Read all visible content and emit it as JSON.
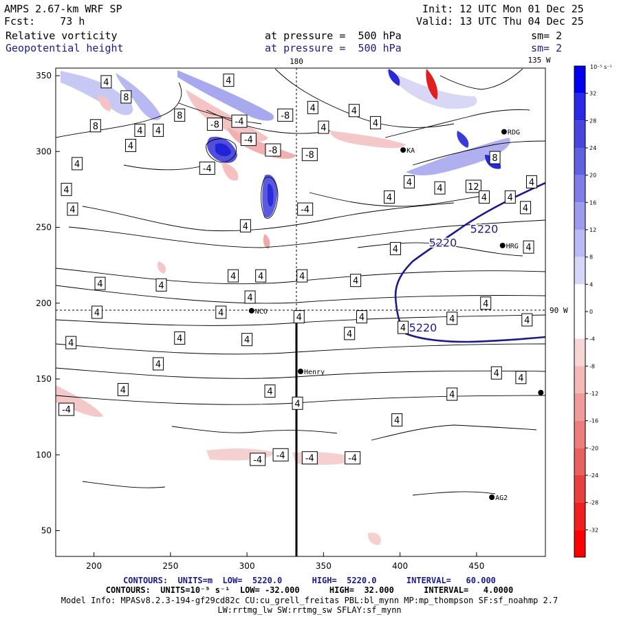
{
  "header": {
    "model": "AMPS 2.67-km WRF SP",
    "fcst": "Fcst:    73 h",
    "init": "Init: 12 UTC Mon 01 Dec 25",
    "valid": "Valid: 13 UTC Thu 04 Dec 25",
    "field1_name": "Relative vorticity",
    "field1_level": "at pressure =  500 hPa",
    "field1_sm": "sm= 2",
    "field2_name": "Geopotential height",
    "field2_level": "at pressure =  500 hPa",
    "field2_sm": "sm= 2"
  },
  "map": {
    "x_ticks": [
      "200",
      "250",
      "300",
      "350",
      "400",
      "450"
    ],
    "y_ticks": [
      "350",
      "300",
      "250",
      "200",
      "150",
      "100",
      "50"
    ],
    "x_range": [
      175,
      495
    ],
    "y_range": [
      33,
      355
    ],
    "meridian_180": "180",
    "meridian_135w": "135 W",
    "meridian_90w": "90 W",
    "stations": [
      {
        "name": "RDG",
        "x": 468,
        "y": 313
      },
      {
        "name": "KA",
        "x": 402,
        "y": 301
      },
      {
        "name": "HRG",
        "x": 467,
        "y": 238
      },
      {
        "name": "NCO",
        "x": 303,
        "y": 195
      },
      {
        "name": "Henry",
        "x": 335,
        "y": 155
      },
      {
        "name": "AG2",
        "x": 460,
        "y": 72
      },
      {
        "name": "",
        "x": 492,
        "y": 141
      }
    ],
    "height_labels": [
      {
        "text": "5220",
        "x": 455,
        "y": 249
      },
      {
        "text": "5220",
        "x": 428,
        "y": 240
      },
      {
        "text": "5220",
        "x": 415,
        "y": 184
      }
    ],
    "vort_labels": [
      {
        "t": "4",
        "x": 208,
        "y": 346
      },
      {
        "t": "8",
        "x": 221,
        "y": 336
      },
      {
        "t": "4",
        "x": 288,
        "y": 347
      },
      {
        "t": "8",
        "x": 256,
        "y": 324
      },
      {
        "t": "8",
        "x": 201,
        "y": 317
      },
      {
        "t": "4",
        "x": 230,
        "y": 314
      },
      {
        "t": "4",
        "x": 242,
        "y": 314
      },
      {
        "t": "-8",
        "x": 279,
        "y": 318
      },
      {
        "t": "-4",
        "x": 295,
        "y": 320
      },
      {
        "t": "-8",
        "x": 325,
        "y": 324
      },
      {
        "t": "4",
        "x": 343,
        "y": 329
      },
      {
        "t": "4",
        "x": 370,
        "y": 327
      },
      {
        "t": "4",
        "x": 350,
        "y": 316
      },
      {
        "t": "4",
        "x": 384,
        "y": 319
      },
      {
        "t": "-4",
        "x": 301,
        "y": 308
      },
      {
        "t": "4",
        "x": 224,
        "y": 304
      },
      {
        "t": "-8",
        "x": 317,
        "y": 301
      },
      {
        "t": "-8",
        "x": 341,
        "y": 298
      },
      {
        "t": "4",
        "x": 189,
        "y": 292
      },
      {
        "t": "-4",
        "x": 274,
        "y": 289
      },
      {
        "t": "4",
        "x": 182,
        "y": 275
      },
      {
        "t": "12",
        "x": 448,
        "y": 277
      },
      {
        "t": "8",
        "x": 462,
        "y": 296
      },
      {
        "t": "4",
        "x": 426,
        "y": 276
      },
      {
        "t": "4",
        "x": 472,
        "y": 270
      },
      {
        "t": "4",
        "x": 393,
        "y": 270
      },
      {
        "t": "4",
        "x": 455,
        "y": 270
      },
      {
        "t": "4",
        "x": 482,
        "y": 263
      },
      {
        "t": "4",
        "x": 486,
        "y": 280
      },
      {
        "t": "4",
        "x": 406,
        "y": 280
      },
      {
        "t": "4",
        "x": 186,
        "y": 262
      },
      {
        "t": "-4",
        "x": 338,
        "y": 262
      },
      {
        "t": "4",
        "x": 299,
        "y": 251
      },
      {
        "t": "4",
        "x": 397,
        "y": 236
      },
      {
        "t": "4",
        "x": 484,
        "y": 237
      },
      {
        "t": "4",
        "x": 204,
        "y": 213
      },
      {
        "t": "4",
        "x": 244,
        "y": 212
      },
      {
        "t": "4",
        "x": 291,
        "y": 218
      },
      {
        "t": "4",
        "x": 309,
        "y": 218
      },
      {
        "t": "4",
        "x": 336,
        "y": 218
      },
      {
        "t": "4",
        "x": 371,
        "y": 215
      },
      {
        "t": "4",
        "x": 302,
        "y": 204
      },
      {
        "t": "4",
        "x": 456,
        "y": 200
      },
      {
        "t": "4",
        "x": 202,
        "y": 194
      },
      {
        "t": "4",
        "x": 283,
        "y": 194
      },
      {
        "t": "4",
        "x": 334,
        "y": 191
      },
      {
        "t": "4",
        "x": 375,
        "y": 191
      },
      {
        "t": "4",
        "x": 434,
        "y": 190
      },
      {
        "t": "4",
        "x": 483,
        "y": 189
      },
      {
        "t": "4",
        "x": 402,
        "y": 184
      },
      {
        "t": "4",
        "x": 185,
        "y": 174
      },
      {
        "t": "4",
        "x": 256,
        "y": 177
      },
      {
        "t": "4",
        "x": 300,
        "y": 176
      },
      {
        "t": "4",
        "x": 367,
        "y": 180
      },
      {
        "t": "4",
        "x": 242,
        "y": 160
      },
      {
        "t": "4",
        "x": 219,
        "y": 143
      },
      {
        "t": "4",
        "x": 315,
        "y": 142
      },
      {
        "t": "4",
        "x": 333,
        "y": 134
      },
      {
        "t": "4",
        "x": 463,
        "y": 154
      },
      {
        "t": "4",
        "x": 479,
        "y": 151
      },
      {
        "t": "4",
        "x": 434,
        "y": 140
      },
      {
        "t": "-4",
        "x": 182,
        "y": 130
      },
      {
        "t": "4",
        "x": 398,
        "y": 123
      },
      {
        "t": "-4",
        "x": 322,
        "y": 100
      },
      {
        "t": "-4",
        "x": 341,
        "y": 98
      },
      {
        "t": "-4",
        "x": 369,
        "y": 98
      },
      {
        "t": "-4",
        "x": 307,
        "y": 97
      }
    ]
  },
  "colorbar": {
    "unit": "10⁻⁵ s⁻¹",
    "labels": [
      "32",
      "28",
      "24",
      "20",
      "16",
      "12",
      "8",
      "4",
      "0",
      "-4",
      "-8",
      "-12",
      "-16",
      "-20",
      "-24",
      "-28",
      "-32"
    ],
    "colors": [
      "#0000ee",
      "#2a2ae6",
      "#4646dc",
      "#6060e0",
      "#7e7ee6",
      "#9c9cee",
      "#babaf4",
      "#d6d6f8",
      "#ffffff",
      "#ffffff",
      "#f8d6d6",
      "#f4baba",
      "#f09c9c",
      "#ec7e7e",
      "#e86060",
      "#e84040",
      "#ee2020",
      "#ff0000"
    ]
  },
  "footer": {
    "line1": "CONTOURS:  UNITS=m  LOW=  5220.0      HIGH=  5220.0      INTERVAL=   60.000",
    "line2": "CONTOURS:  UNITS=10⁻⁵ s⁻¹  LOW= -32.000      HIGH=  32.000      INTERVAL=   4.0000",
    "line3": "Model Info: MPASv8.2.3-194-gf29cd82c CU:cu_grell_freitas PBL:bl_mynn MP:mp_thompson SF:sf_noahmp 2.7",
    "line4": "LW:rrtmg_lw SW:rrtmg_sw SFLAY:sf_mynn"
  }
}
